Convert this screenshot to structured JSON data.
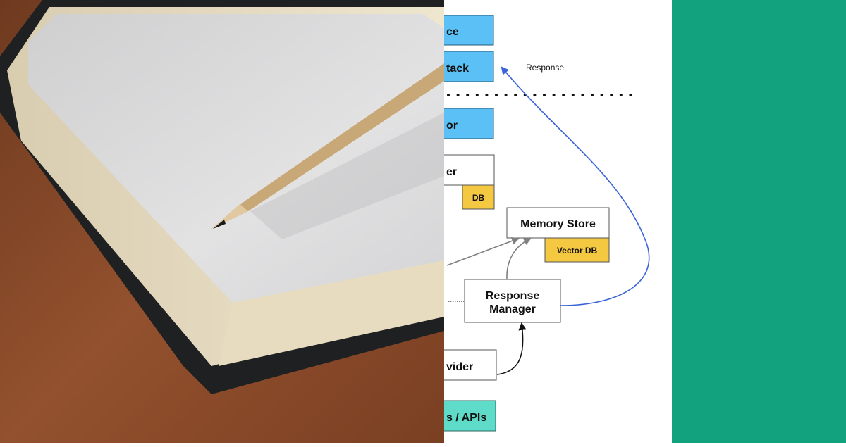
{
  "photo": {
    "subject": "notebook-with-pencil"
  },
  "diagram": {
    "boxes": [
      {
        "label": "ce",
        "color": "#5bc0f5"
      },
      {
        "label": "tack",
        "color": "#5bc0f5"
      },
      {
        "label": "or",
        "color": "#5bc0f5"
      },
      {
        "label": "er",
        "color": "#ffffff"
      },
      {
        "label": "DB",
        "color": "#f5c842"
      },
      {
        "label": "Memory Store",
        "color": "#ffffff"
      },
      {
        "label": "Vector DB",
        "color": "#f5c842"
      },
      {
        "label_line1": "Response",
        "label_line2": "Manager",
        "color": "#ffffff"
      },
      {
        "label": "vider",
        "color": "#ffffff"
      },
      {
        "label": "s / APIs",
        "color": "#5fdcc9"
      }
    ],
    "edge_label": "Response",
    "response_edge_color": "#3a63d8"
  },
  "panel": {
    "color": "#12a37e"
  }
}
